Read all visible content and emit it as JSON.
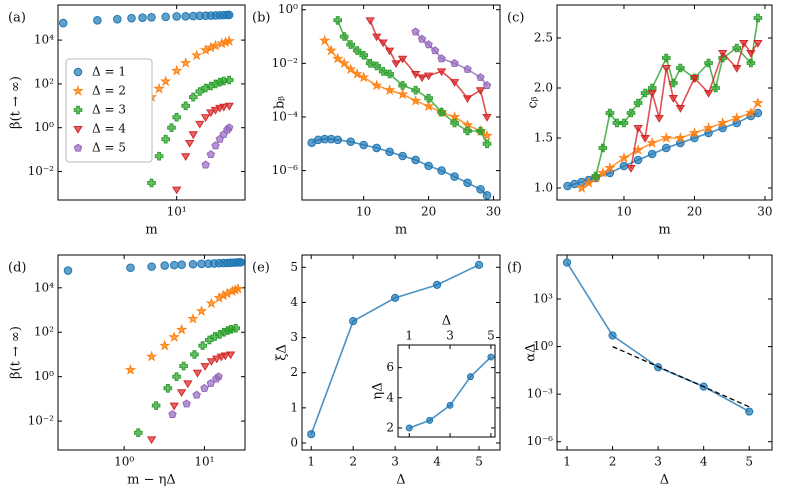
{
  "chart_data": [
    {
      "type": "scatter",
      "label": "(a)",
      "xlabel": "m",
      "ylabel": "β(t → ∞)",
      "xscale": "log",
      "yscale": "log",
      "xlim": [
        0.9,
        40
      ],
      "ylim": [
        0.0005,
        400000
      ],
      "xticks": [
        {
          "value": 10,
          "label": "10¹"
        }
      ],
      "yticks": [
        {
          "value": 0.01,
          "label": "10⁻²"
        },
        {
          "value": 1,
          "label": "10⁰"
        },
        {
          "value": 100,
          "label": "10²"
        },
        {
          "value": 10000,
          "label": "10⁴"
        }
      ],
      "legend": "center left",
      "series": [
        {
          "name": "Δ = 1",
          "color": "#1f77b4",
          "marker": "circle",
          "x": [
            1,
            2,
            3,
            4,
            5,
            6,
            8,
            10,
            12,
            14,
            16,
            18,
            20,
            22,
            24,
            26,
            28,
            29
          ],
          "values": [
            60000,
            80000,
            90000,
            100000,
            105000,
            110000,
            115000,
            120000,
            122000,
            125000,
            128000,
            130000,
            132000,
            134000,
            136000,
            138000,
            140000,
            140000
          ]
        },
        {
          "name": "Δ = 2",
          "color": "#ff7f0e",
          "marker": "star",
          "x": [
            4,
            5,
            6,
            7,
            8,
            10,
            12,
            15,
            18,
            20,
            22,
            25,
            27,
            29
          ],
          "values": [
            2,
            8,
            25,
            60,
            130,
            400,
            900,
            2000,
            3500,
            4500,
            5500,
            7000,
            8000,
            9000
          ]
        },
        {
          "name": "Δ = 3",
          "color": "#2ca02c",
          "marker": "plus",
          "x": [
            6,
            7,
            8,
            9,
            10,
            12,
            14,
            16,
            18,
            20,
            22,
            24,
            26,
            29
          ],
          "values": [
            0.003,
            0.05,
            0.3,
            1,
            3,
            10,
            25,
            45,
            65,
            80,
            100,
            120,
            135,
            150
          ]
        },
        {
          "name": "Δ = 4",
          "color": "#d62728",
          "marker": "triangle-down",
          "x": [
            10,
            12,
            13,
            14,
            16,
            18,
            20,
            22,
            24,
            26,
            29
          ],
          "values": [
            0.0015,
            0.05,
            0.2,
            0.5,
            1.5,
            3,
            5,
            6.5,
            8,
            9,
            10
          ]
        },
        {
          "name": "Δ = 5",
          "color": "#9467bd",
          "marker": "pentagon",
          "x": [
            18,
            20,
            22,
            24,
            26,
            28,
            29
          ],
          "values": [
            0.02,
            0.06,
            0.15,
            0.3,
            0.5,
            0.8,
            1
          ]
        }
      ]
    },
    {
      "type": "line",
      "label": "(b)",
      "xlabel": "m",
      "ylabel": "bᵦ",
      "yscale": "log",
      "xlim": [
        0.5,
        31
      ],
      "ylim": [
        8e-08,
        1.5
      ],
      "xticks": [
        10,
        20,
        30
      ],
      "yticks": [
        {
          "value": 1e-06,
          "label": "10⁻⁶"
        },
        {
          "value": 0.0001,
          "label": "10⁻⁴"
        },
        {
          "value": 0.01,
          "label": "10⁻²"
        },
        {
          "value": 1,
          "label": "10⁰"
        }
      ],
      "series": [
        {
          "color": "#1f77b4",
          "marker": "circle",
          "x": [
            2,
            3,
            4,
            5,
            6,
            8,
            10,
            12,
            14,
            16,
            18,
            20,
            22,
            24,
            26,
            28,
            29
          ],
          "values": [
            1.1e-05,
            1.4e-05,
            1.5e-05,
            1.5e-05,
            1.4e-05,
            1.2e-05,
            9e-06,
            7e-06,
            5e-06,
            3.5e-06,
            2.5e-06,
            1.5e-06,
            1e-06,
            6e-07,
            3.5e-07,
            2e-07,
            1.2e-07
          ]
        },
        {
          "color": "#ff7f0e",
          "marker": "star",
          "x": [
            4,
            5,
            6,
            7,
            8,
            9,
            10,
            12,
            14,
            16,
            18,
            20,
            22,
            24,
            26,
            28,
            29
          ],
          "values": [
            0.07,
            0.03,
            0.015,
            0.01,
            0.006,
            0.004,
            0.003,
            0.0015,
            0.001,
            0.0007,
            0.0004,
            0.00025,
            0.00015,
            0.0001,
            5e-05,
            3e-05,
            2e-05
          ]
        },
        {
          "color": "#2ca02c",
          "marker": "plus",
          "x": [
            6,
            7,
            8,
            9,
            10,
            11,
            12,
            13,
            14,
            16,
            18,
            20,
            22,
            24,
            26,
            28,
            29
          ],
          "values": [
            0.4,
            0.1,
            0.05,
            0.03,
            0.02,
            0.01,
            0.008,
            0.005,
            0.004,
            0.0015,
            0.001,
            0.0005,
            0.00015,
            6e-05,
            3e-05,
            3e-05,
            1e-05
          ]
        },
        {
          "color": "#d62728",
          "marker": "triangle-down",
          "x": [
            11,
            12,
            13,
            14,
            15,
            16,
            18,
            19,
            20,
            22,
            24,
            26,
            28,
            29
          ],
          "values": [
            0.4,
            0.1,
            0.06,
            0.03,
            0.01,
            0.015,
            0.004,
            0.003,
            0.0035,
            0.005,
            0.002,
            0.0005,
            0.001,
            0.0001
          ]
        },
        {
          "color": "#9467bd",
          "marker": "pentagon",
          "x": [
            18,
            19,
            20,
            21,
            22,
            24,
            26,
            28,
            29
          ],
          "values": [
            0.15,
            0.08,
            0.05,
            0.03,
            0.015,
            0.01,
            0.006,
            0.003,
            0.0015
          ]
        }
      ]
    },
    {
      "type": "line",
      "label": "(c)",
      "xlabel": "m",
      "ylabel": "cᵦ",
      "xlim": [
        0.5,
        31
      ],
      "ylim": [
        0.88,
        2.83
      ],
      "xticks": [
        10,
        20,
        30
      ],
      "yticks": [
        {
          "value": 1,
          "label": "1.0"
        },
        1.5,
        {
          "value": 2,
          "label": "2.0"
        },
        2.5
      ],
      "series": [
        {
          "color": "#1f77b4",
          "marker": "circle",
          "x": [
            2,
            3,
            4,
            5,
            6,
            8,
            10,
            12,
            14,
            16,
            18,
            20,
            22,
            24,
            26,
            28,
            29
          ],
          "values": [
            1.02,
            1.04,
            1.06,
            1.08,
            1.1,
            1.15,
            1.22,
            1.28,
            1.34,
            1.4,
            1.45,
            1.5,
            1.55,
            1.6,
            1.65,
            1.72,
            1.75
          ]
        },
        {
          "color": "#ff7f0e",
          "marker": "star",
          "x": [
            4,
            5,
            6,
            7,
            8,
            10,
            12,
            14,
            16,
            18,
            20,
            22,
            24,
            26,
            28,
            29
          ],
          "values": [
            1.0,
            1.05,
            1.1,
            1.15,
            1.2,
            1.3,
            1.38,
            1.45,
            1.5,
            1.5,
            1.55,
            1.6,
            1.65,
            1.7,
            1.75,
            1.85
          ]
        },
        {
          "color": "#2ca02c",
          "marker": "plus",
          "x": [
            6,
            7,
            8,
            9,
            10,
            11,
            12,
            13,
            14,
            16,
            17,
            18,
            20,
            22,
            23,
            24,
            26,
            28,
            29
          ],
          "values": [
            1.12,
            1.4,
            1.75,
            1.65,
            1.65,
            1.75,
            1.85,
            1.95,
            2.0,
            2.3,
            2.05,
            2.2,
            2.1,
            2.25,
            2.0,
            2.3,
            2.4,
            2.25,
            2.7
          ]
        },
        {
          "color": "#d62728",
          "marker": "triangle-down",
          "x": [
            11,
            12,
            13,
            14,
            15,
            16,
            17,
            18,
            20,
            22,
            24,
            26,
            27,
            28,
            29
          ],
          "values": [
            1.2,
            1.6,
            1.5,
            1.95,
            1.7,
            2.2,
            1.9,
            1.8,
            2.1,
            1.95,
            2.35,
            2.2,
            2.45,
            2.35,
            2.45
          ]
        }
      ]
    },
    {
      "type": "scatter",
      "label": "(d)",
      "xlabel": "m − ηΔ",
      "ylabel": "β(t → ∞)",
      "xscale": "log",
      "yscale": "log",
      "xlim": [
        0.15,
        32
      ],
      "ylim": [
        0.0005,
        300000
      ],
      "xticks": [
        {
          "value": 1,
          "label": "10⁰"
        },
        {
          "value": 10,
          "label": "10¹"
        }
      ],
      "yticks": [
        {
          "value": 0.01,
          "label": "10⁻²"
        },
        {
          "value": 1,
          "label": "10⁰"
        },
        {
          "value": 100,
          "label": "10²"
        },
        {
          "value": 10000,
          "label": "10⁴"
        }
      ],
      "series": [
        {
          "color": "#1f77b4",
          "marker": "circle",
          "x": [
            0.2,
            1.2,
            2.2,
            3.2,
            4.2,
            5.2,
            7.2,
            9.2,
            11.2,
            13.2,
            15.2,
            17.2,
            19.2,
            21.2,
            23.2,
            25.2,
            27.2,
            28.2
          ],
          "values": [
            60000,
            80000,
            90000,
            100000,
            105000,
            110000,
            115000,
            120000,
            122000,
            125000,
            128000,
            130000,
            132000,
            134000,
            136000,
            138000,
            140000,
            140000
          ]
        },
        {
          "color": "#ff7f0e",
          "marker": "star",
          "x": [
            1.2,
            2.2,
            3.2,
            4.2,
            5.2,
            7.2,
            9.2,
            12.2,
            15.2,
            17.2,
            19.2,
            22.2,
            24.2,
            26.2
          ],
          "values": [
            2,
            8,
            25,
            60,
            130,
            400,
            900,
            2000,
            3500,
            4500,
            5500,
            7000,
            8000,
            9000
          ]
        },
        {
          "color": "#2ca02c",
          "marker": "plus",
          "x": [
            1.5,
            2.5,
            3.5,
            4.5,
            5.5,
            7.5,
            9.5,
            11.5,
            13.5,
            15.5,
            17.5,
            19.5,
            21.5,
            24.5
          ],
          "values": [
            0.003,
            0.05,
            0.3,
            1,
            3,
            10,
            25,
            45,
            65,
            80,
            100,
            120,
            135,
            150
          ]
        },
        {
          "color": "#d62728",
          "marker": "triangle-down",
          "x": [
            2.2,
            4.2,
            5.2,
            6.2,
            8.2,
            10.2,
            12.2,
            14.2,
            16.2,
            18.2,
            21.2
          ],
          "values": [
            0.0015,
            0.05,
            0.2,
            0.5,
            1.5,
            3,
            5,
            6.5,
            8,
            9,
            10
          ]
        },
        {
          "color": "#9467bd",
          "marker": "pentagon",
          "x": [
            4,
            6,
            8,
            10,
            12,
            14,
            15
          ],
          "values": [
            0.02,
            0.06,
            0.15,
            0.3,
            0.5,
            0.8,
            1
          ]
        }
      ]
    },
    {
      "type": "line",
      "label": "(e)",
      "xlabel": "Δ",
      "ylabel": "ξΔ",
      "xlim": [
        0.78,
        5.5
      ],
      "ylim": [
        -0.2,
        5.35
      ],
      "xticks": [
        1,
        2,
        3,
        4,
        5
      ],
      "yticks": [
        0,
        1,
        2,
        3,
        4,
        5
      ],
      "series": [
        {
          "color": "#1f77b4",
          "marker": "circle",
          "x": [
            1,
            2,
            3,
            4,
            5
          ],
          "values": [
            0.25,
            3.47,
            4.13,
            4.5,
            5.07
          ]
        }
      ],
      "inset": {
        "type": "line",
        "xlabel": "Δ",
        "ylabel": "ηΔ",
        "xlim": [
          0.45,
          5.2
        ],
        "ylim": [
          1.4,
          7.5
        ],
        "xticks": [
          1,
          3,
          5
        ],
        "yticks": [
          2,
          4,
          6
        ],
        "series": [
          {
            "color": "#1f77b4",
            "marker": "circle",
            "x": [
              1,
              2,
              3,
              4,
              5
            ],
            "values": [
              2.0,
              2.5,
              3.5,
              5.4,
              6.7
            ]
          }
        ]
      }
    },
    {
      "type": "line",
      "label": "(f)",
      "xlabel": "Δ",
      "ylabel": "αΔ",
      "yscale": "log",
      "xlim": [
        0.78,
        5.5
      ],
      "ylim": [
        3e-07,
        600000
      ],
      "xticks": [
        1,
        2,
        3,
        4,
        5
      ],
      "yticks": [
        {
          "value": 1e-06,
          "label": "10⁻⁶"
        },
        {
          "value": 0.001,
          "label": "10⁻³"
        },
        {
          "value": 1,
          "label": "10⁰"
        },
        {
          "value": 1000,
          "label": "10³"
        }
      ],
      "series": [
        {
          "color": "#1f77b4",
          "marker": "circle",
          "x": [
            1,
            2,
            3,
            4,
            5
          ],
          "values": [
            200000,
            5,
            0.05,
            0.003,
            8e-05
          ]
        },
        {
          "color": "#000000",
          "linestyle": "dashed",
          "x": [
            2,
            5
          ],
          "values": [
            1,
            0.00016
          ]
        }
      ]
    }
  ]
}
